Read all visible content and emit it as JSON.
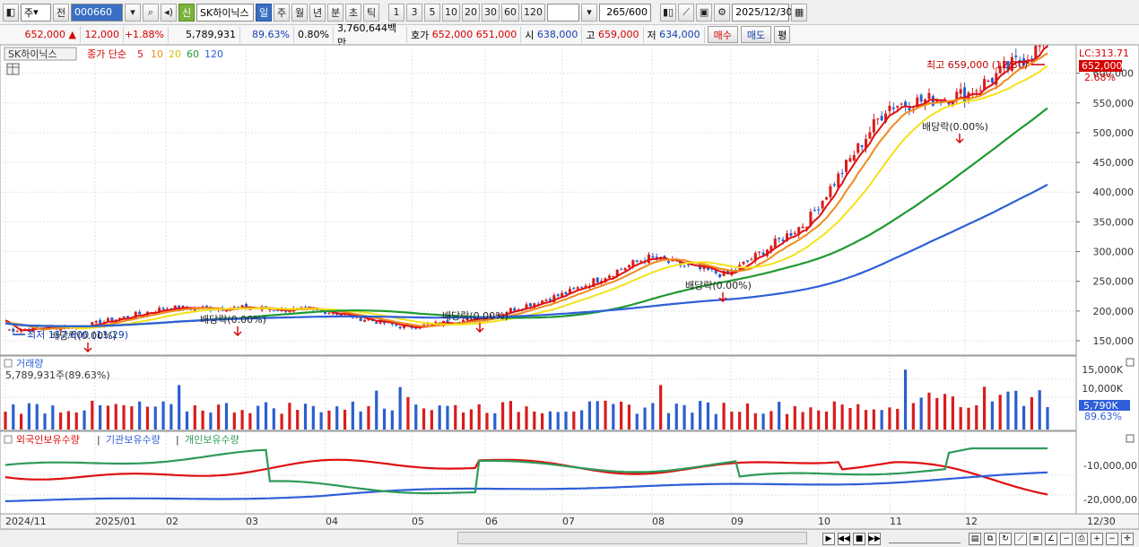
{
  "toolbar": {
    "period_unit": "주",
    "prev_label": "전",
    "code": "000660",
    "credit_badge": "신",
    "stock_name": "SK하이닉스",
    "tabs": [
      "일",
      "주",
      "월",
      "년",
      "분",
      "초",
      "틱"
    ],
    "active_tab": "일",
    "intervals": [
      "1",
      "3",
      "5",
      "10",
      "20",
      "30",
      "60",
      "120"
    ],
    "count": "265",
    "count_total": "/600",
    "date": "2025/12/30"
  },
  "quote": {
    "price": "652,000",
    "change": "12,000",
    "change_pct": "+1.88%",
    "volume": "5,789,931",
    "vol_ratio": "89.63%",
    "turnover": "0.80%",
    "trade_value": "3,760,644백만",
    "ask_label": "호가",
    "ask1": "652,000",
    "ask2": "651,000",
    "open_label": "시",
    "open": "638,000",
    "high_label": "고",
    "high": "659,000",
    "low_label": "저",
    "low": "634,000",
    "buy_label": "매수",
    "sell_label": "매도",
    "eval_label": "평"
  },
  "price_pane": {
    "name": "SK하이닉스",
    "legend_prefix": "종가 단순",
    "ma": [
      {
        "label": "5",
        "color": "#e01010"
      },
      {
        "label": "10",
        "color": "#f08a1c"
      },
      {
        "label": "20",
        "color": "#f2e21a"
      },
      {
        "label": "60",
        "color": "#1f9a30"
      },
      {
        "label": "120",
        "color": "#2f5fd8"
      }
    ],
    "lc_label": "LC:313.71",
    "last_price_tag": "652,000",
    "last_pct_tag": "2.68%",
    "high_note": "최고 659,000 (12/30)",
    "low_note": "최저 157,600 (11/29)",
    "dividend_label": "배당락(0.00%)",
    "y_ticks": [
      "600,000",
      "550,000",
      "500,000",
      "450,000",
      "400,000",
      "350,000",
      "300,000",
      "250,000",
      "200,000",
      "150,000"
    ]
  },
  "volume_pane": {
    "title": "거래량",
    "value_text": "5,789,931주(89.63%)",
    "y_ticks": [
      "15,000K",
      "10,000K"
    ],
    "tag": "5,790K",
    "tag_pct": "89.63%"
  },
  "holding_pane": {
    "series": [
      {
        "name": "외국인보유수량",
        "color": "#e01010"
      },
      {
        "name": "기관보유수량",
        "color": "#2f5fd8"
      },
      {
        "name": "개인보유수량",
        "color": "#2e9a5a"
      }
    ],
    "y_ticks": [
      "-10,000,00",
      "-20,000,00"
    ]
  },
  "x_axis": {
    "labels": [
      "2024/11",
      "2025/01",
      "02",
      "03",
      "04",
      "05",
      "06",
      "07",
      "08",
      "09",
      "10",
      "11",
      "12"
    ],
    "last_label": "12/30"
  },
  "chart_data": {
    "type": "line",
    "x_range": [
      "2024/11",
      "2025/12/30"
    ],
    "ylim": [
      140000,
      670000
    ],
    "closes_by_month": {
      "2024/11": 168000,
      "2024/12": 175000,
      "2025/01": 205000,
      "2025/02": 205000,
      "2025/03": 200000,
      "2025/04": 172000,
      "2025/05": 190000,
      "2025/06": 230000,
      "2025/07": 290000,
      "2025/08": 260000,
      "2025/09": 350000,
      "2025/10": 545000,
      "2025/11": 565000,
      "2025/12": 652000
    },
    "high": {
      "value": 659000,
      "date": "12/30"
    },
    "low": {
      "value": 157600,
      "date": "11/29"
    }
  },
  "colors": {
    "up": "#d81c1c",
    "down": "#2a5fcf",
    "grid": "#d6d6d6"
  },
  "icons": [
    "grid-icon",
    "search-icon",
    "speaker-icon",
    "dropdown-icon",
    "settings-icon",
    "save-icon",
    "calendar-icon",
    "table-icon",
    "zoom-in-icon",
    "zoom-out-icon"
  ]
}
